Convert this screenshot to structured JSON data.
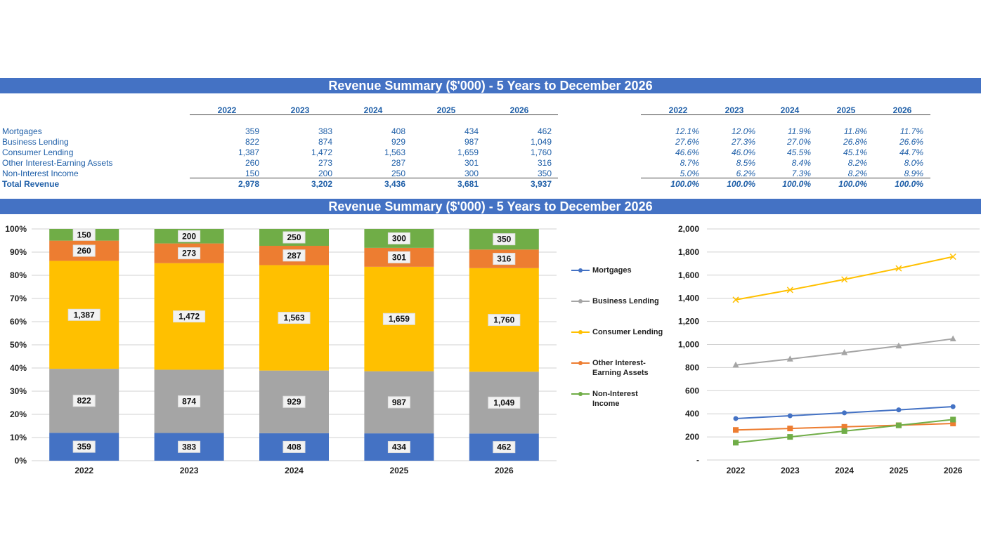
{
  "title": "Revenue Summary ($'000) - 5 Years to December 2026",
  "title2": "Revenue Summary ($'000) - 5 Years to December 2026",
  "table": {
    "years": [
      "2022",
      "2023",
      "2024",
      "2025",
      "2026"
    ],
    "rows": [
      {
        "label": "Mortgages",
        "values": [
          "359",
          "383",
          "408",
          "434",
          "462"
        ],
        "pcts": [
          "12.1%",
          "12.0%",
          "11.9%",
          "11.8%",
          "11.7%"
        ]
      },
      {
        "label": "Business Lending",
        "values": [
          "822",
          "874",
          "929",
          "987",
          "1,049"
        ],
        "pcts": [
          "27.6%",
          "27.3%",
          "27.0%",
          "26.8%",
          "26.6%"
        ]
      },
      {
        "label": "Consumer Lending",
        "values": [
          "1,387",
          "1,472",
          "1,563",
          "1,659",
          "1,760"
        ],
        "pcts": [
          "46.6%",
          "46.0%",
          "45.5%",
          "45.1%",
          "44.7%"
        ]
      },
      {
        "label": "Other Interest-Earning Assets",
        "values": [
          "260",
          "273",
          "287",
          "301",
          "316"
        ],
        "pcts": [
          "8.7%",
          "8.5%",
          "8.4%",
          "8.2%",
          "8.0%"
        ]
      },
      {
        "label": "Non-Interest Income",
        "values": [
          "150",
          "200",
          "250",
          "300",
          "350"
        ],
        "pcts": [
          "5.0%",
          "6.2%",
          "7.3%",
          "8.2%",
          "8.9%"
        ]
      }
    ],
    "total": {
      "label": "Total Revenue",
      "values": [
        "2,978",
        "3,202",
        "3,436",
        "3,681",
        "3,937"
      ],
      "pcts": [
        "100.0%",
        "100.0%",
        "100.0%",
        "100.0%",
        "100.0%"
      ]
    }
  },
  "chart_data": [
    {
      "type": "bar",
      "stacked": "percent",
      "categories": [
        "2022",
        "2023",
        "2024",
        "2025",
        "2026"
      ],
      "series": [
        {
          "name": "Mortgages",
          "color": "#4472c4",
          "values": [
            359,
            383,
            408,
            434,
            462
          ]
        },
        {
          "name": "Business Lending",
          "color": "#a5a5a5",
          "values": [
            822,
            874,
            929,
            987,
            1049
          ]
        },
        {
          "name": "Consumer Lending",
          "color": "#ffc000",
          "values": [
            1387,
            1472,
            1563,
            1659,
            1760
          ]
        },
        {
          "name": "Other Interest-Earning Assets",
          "color": "#ed7d31",
          "values": [
            260,
            273,
            287,
            301,
            316
          ]
        },
        {
          "name": "Non-Interest Income",
          "color": "#70ad47",
          "values": [
            150,
            200,
            250,
            300,
            350
          ]
        }
      ],
      "data_labels": [
        [
          "359",
          "383",
          "408",
          "434",
          "462"
        ],
        [
          "822",
          "874",
          "929",
          "987",
          "1,049"
        ],
        [
          "1,387",
          "1,472",
          "1,563",
          "1,659",
          "1,760"
        ],
        [
          "260",
          "273",
          "287",
          "301",
          "316"
        ],
        [
          "150",
          "200",
          "250",
          "300",
          "350"
        ]
      ],
      "yticks": [
        "0%",
        "10%",
        "20%",
        "30%",
        "40%",
        "50%",
        "60%",
        "70%",
        "80%",
        "90%",
        "100%"
      ],
      "ylim": [
        0,
        1
      ],
      "grid": true
    },
    {
      "type": "line",
      "categories": [
        "2022",
        "2023",
        "2024",
        "2025",
        "2026"
      ],
      "series": [
        {
          "name": "Mortgages",
          "color": "#4472c4",
          "marker": "circle",
          "values": [
            359,
            383,
            408,
            434,
            462
          ]
        },
        {
          "name": "Business Lending",
          "color": "#a5a5a5",
          "marker": "triangle",
          "values": [
            822,
            874,
            929,
            987,
            1049
          ]
        },
        {
          "name": "Consumer Lending",
          "color": "#ffc000",
          "marker": "x",
          "values": [
            1387,
            1472,
            1563,
            1659,
            1760
          ]
        },
        {
          "name": "Other Interest-Earning Assets",
          "color": "#ed7d31",
          "marker": "square",
          "values": [
            260,
            273,
            287,
            301,
            316
          ]
        },
        {
          "name": "Non-Interest Income",
          "color": "#70ad47",
          "marker": "square",
          "values": [
            150,
            200,
            250,
            300,
            350
          ]
        }
      ],
      "yticks": [
        "-",
        "200",
        "400",
        "600",
        "800",
        "1,000",
        "1,200",
        "1,400",
        "1,600",
        "1,800",
        "2,000"
      ],
      "ylim": [
        0,
        2000
      ],
      "legend": {
        "position": "left",
        "entries": [
          {
            "lines": [
              "Mortgages"
            ]
          },
          {
            "lines": [
              "Business Lending"
            ]
          },
          {
            "lines": [
              "Consumer Lending"
            ]
          },
          {
            "lines": [
              "Other Interest-",
              "Earning Assets"
            ]
          },
          {
            "lines": [
              "Non-Interest",
              "Income"
            ]
          }
        ]
      },
      "grid": true
    }
  ]
}
